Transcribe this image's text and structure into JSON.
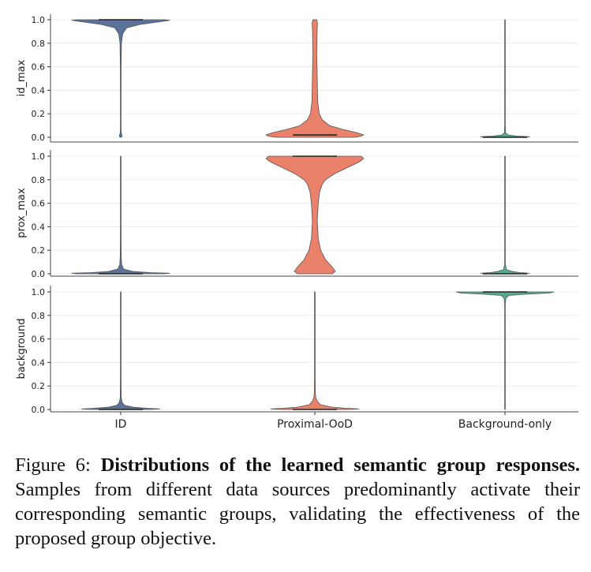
{
  "chart_data": {
    "type": "violin",
    "categories": [
      "ID",
      "Proximal-OoD",
      "Background-only"
    ],
    "colors": [
      "#5b739b",
      "#e9816b",
      "#52ad95"
    ],
    "yticks": [
      "0.0",
      "0.2",
      "0.4",
      "0.6",
      "0.8",
      "1.0"
    ],
    "ylim": [
      0,
      1
    ],
    "grid": true,
    "panels": [
      {
        "ylabel": "id_max",
        "medians": [
          1.0,
          0.02,
          0.0
        ],
        "violins": [
          {
            "y": [
              0.0,
              0.01,
              0.03,
              0.05,
              0.1,
              0.3,
              0.6,
              0.8,
              0.88,
              0.93,
              0.96,
              0.98,
              0.995,
              1.0
            ],
            "w": [
              0.01,
              0.03,
              0.015,
              0.008,
              0.006,
              0.006,
              0.008,
              0.015,
              0.04,
              0.12,
              0.4,
              0.75,
              1.0,
              0.9
            ]
          },
          {
            "y": [
              0.0,
              0.01,
              0.02,
              0.04,
              0.07,
              0.1,
              0.15,
              0.2,
              0.3,
              0.5,
              0.7,
              0.85,
              0.93,
              0.97,
              1.0
            ],
            "w": [
              0.8,
              0.95,
              1.0,
              0.85,
              0.55,
              0.3,
              0.15,
              0.09,
              0.06,
              0.05,
              0.04,
              0.045,
              0.05,
              0.055,
              0.04
            ]
          },
          {
            "y": [
              0.0,
              0.005,
              0.01,
              0.02,
              0.04,
              0.1,
              0.5,
              1.0
            ],
            "w": [
              0.35,
              0.5,
              0.25,
              0.06,
              0.01,
              0.006,
              0.006,
              0.006
            ]
          }
        ]
      },
      {
        "ylabel": "prox_max",
        "medians": [
          0.0,
          1.0,
          0.0
        ],
        "violins": [
          {
            "y": [
              0.0,
              0.005,
              0.01,
              0.02,
              0.04,
              0.08,
              0.15,
              0.4,
              1.0
            ],
            "w": [
              0.9,
              1.0,
              0.6,
              0.25,
              0.06,
              0.02,
              0.01,
              0.006,
              0.006
            ]
          },
          {
            "y": [
              0.0,
              0.02,
              0.06,
              0.12,
              0.2,
              0.3,
              0.45,
              0.6,
              0.7,
              0.76,
              0.8,
              0.85,
              0.9,
              0.95,
              0.98,
              1.0
            ],
            "w": [
              0.35,
              0.42,
              0.35,
              0.22,
              0.12,
              0.07,
              0.05,
              0.07,
              0.1,
              0.15,
              0.22,
              0.4,
              0.65,
              0.9,
              1.0,
              0.95
            ]
          },
          {
            "y": [
              0.0,
              0.005,
              0.01,
              0.02,
              0.035,
              0.08,
              0.5,
              1.0
            ],
            "w": [
              0.35,
              0.5,
              0.3,
              0.15,
              0.03,
              0.006,
              0.006,
              0.006
            ]
          }
        ]
      },
      {
        "ylabel": "background",
        "medians": [
          0.0,
          0.0,
          1.0
        ],
        "violins": [
          {
            "y": [
              0.0,
              0.005,
              0.01,
              0.02,
              0.035,
              0.06,
              0.1,
              0.3,
              1.0
            ],
            "w": [
              0.6,
              0.8,
              0.55,
              0.25,
              0.08,
              0.03,
              0.01,
              0.006,
              0.006
            ]
          },
          {
            "y": [
              0.0,
              0.005,
              0.01,
              0.02,
              0.04,
              0.07,
              0.1,
              0.15,
              0.3,
              1.0
            ],
            "w": [
              0.7,
              0.9,
              0.65,
              0.35,
              0.12,
              0.05,
              0.02,
              0.01,
              0.006,
              0.006
            ]
          },
          {
            "y": [
              0.0,
              0.5,
              0.9,
              0.95,
              0.97,
              0.98,
              0.99,
              1.0
            ],
            "w": [
              0.006,
              0.006,
              0.006,
              0.02,
              0.08,
              0.4,
              0.9,
              1.0
            ]
          }
        ]
      }
    ]
  },
  "caption": {
    "figure_label": "Figure 6: ",
    "bold_text": "Distributions of the learned semantic group responses.",
    "body_text": " Samples from different data sources predominantly activate their corresponding semantic groups, validating the effectiveness of the proposed group objective."
  }
}
